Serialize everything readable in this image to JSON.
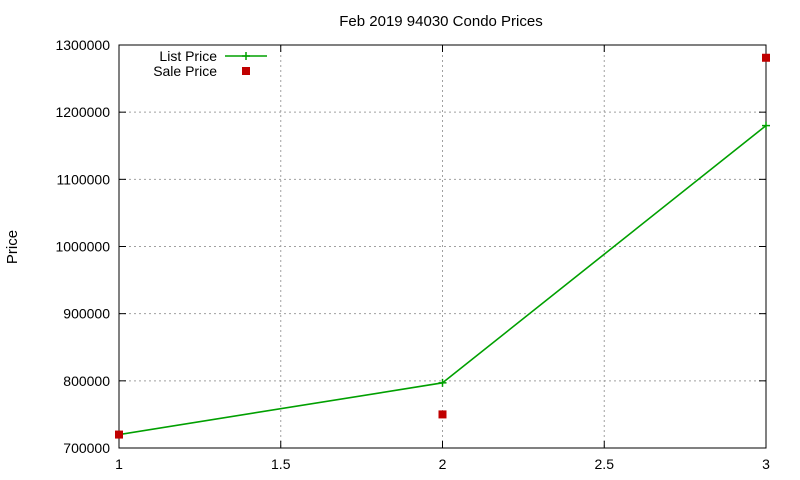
{
  "chart_data": {
    "type": "line",
    "title": "Feb 2019 94030 Condo Prices",
    "xlabel": "",
    "ylabel": "Price",
    "xlim": [
      1,
      3
    ],
    "ylim": [
      700000,
      1300000
    ],
    "x_ticks": [
      1,
      1.5,
      2,
      2.5,
      3
    ],
    "x_tick_labels": [
      "1",
      "1.5",
      "2",
      "2.5",
      "3"
    ],
    "y_ticks": [
      700000,
      800000,
      900000,
      1000000,
      1100000,
      1200000,
      1300000
    ],
    "y_tick_labels": [
      "700000",
      "800000",
      "900000",
      "1000000",
      "1100000",
      "1200000",
      "1300000"
    ],
    "grid": true,
    "legend_position": "top-left",
    "series": [
      {
        "name": "List Price",
        "style": "line-with-plus-markers",
        "color": "#00a000",
        "x": [
          1,
          2,
          3
        ],
        "y": [
          720000,
          797000,
          1180000
        ]
      },
      {
        "name": "Sale Price",
        "style": "square-points",
        "color": "#c00000",
        "x": [
          1,
          2,
          3
        ],
        "y": [
          720000,
          750000,
          1281000
        ]
      }
    ]
  }
}
